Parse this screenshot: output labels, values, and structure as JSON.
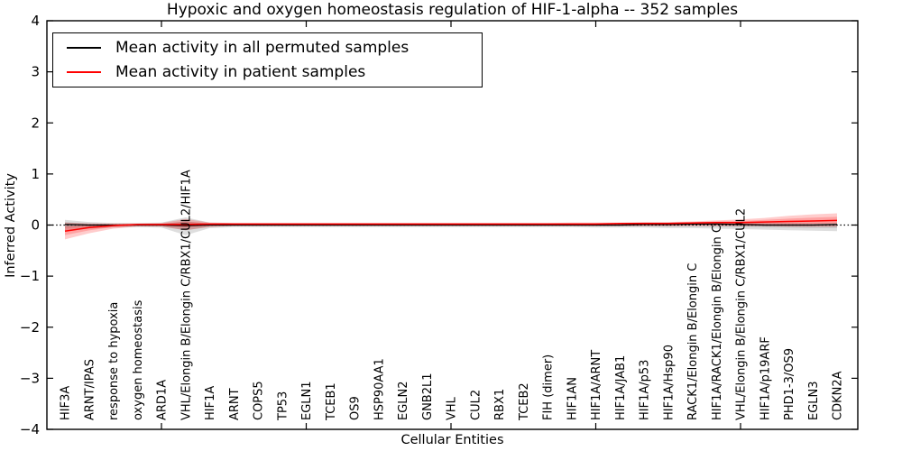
{
  "chart_data": {
    "type": "line",
    "title": "Hypoxic and oxygen homeostasis regulation of HIF-1-alpha -- 352 samples",
    "xlabel": "Cellular Entities",
    "ylabel": "Inferred Activity",
    "ylim": [
      -4,
      4
    ],
    "grid": false,
    "legend_position": "upper left",
    "yticks": {
      "values": [
        4,
        3,
        2,
        1,
        0,
        -1,
        -2,
        -3,
        -4
      ],
      "labels": [
        "4",
        "3",
        "2",
        "1",
        "0",
        "−1",
        "−2",
        "−3",
        "−4"
      ]
    },
    "xtick_positions": [
      4,
      10,
      16,
      22,
      28
    ],
    "categories": [
      "HIF3A",
      "ARNT/IPAS",
      "response to hypoxia",
      "oxygen homeostasis",
      "ARD1A",
      "VHL/Elongin B/Elongin C/RBX1/CUL2/HIF1A",
      "HIF1A",
      "ARNT",
      "COPS5",
      "TP53",
      "EGLN1",
      "TCEB1",
      "OS9",
      "HSP90AA1",
      "EGLN2",
      "GNB2L1",
      "VHL",
      "CUL2",
      "RBX1",
      "TCEB2",
      "FIH (dimer)",
      "HIF1AN",
      "HIF1A/ARNT",
      "HIF1A/JAB1",
      "HIF1A/p53",
      "HIF1A/Hsp90",
      "RACK1/Elongin B/Elongin C",
      "HIF1A/RACK1/Elongin B/Elongin C",
      "VHL/Elongin B/Elongin C/RBX1/CUL2",
      "HIF1A/p19ARF",
      "PHD1-3/OS9",
      "EGLN3",
      "CDKN2A"
    ],
    "series": [
      {
        "name": "Mean activity in all permuted samples",
        "color": "#000000",
        "band_color": "rgba(0,0,0,0.13)",
        "values": [
          0.01,
          0.0,
          0.0,
          0.0,
          0.0,
          -0.01,
          0.0,
          0.0,
          0.0,
          0.0,
          0.0,
          0.0,
          0.0,
          0.0,
          0.0,
          0.0,
          0.0,
          0.0,
          0.0,
          0.0,
          0.0,
          0.0,
          0.0,
          0.0,
          0.01,
          0.01,
          0.02,
          0.02,
          0.01,
          0.0,
          0.0,
          0.0,
          0.01
        ],
        "band_upper": [
          0.1,
          0.06,
          0.04,
          0.04,
          0.05,
          0.15,
          0.05,
          0.04,
          0.04,
          0.04,
          0.04,
          0.04,
          0.04,
          0.04,
          0.04,
          0.04,
          0.04,
          0.04,
          0.04,
          0.04,
          0.04,
          0.04,
          0.04,
          0.04,
          0.05,
          0.05,
          0.06,
          0.06,
          0.05,
          0.05,
          0.05,
          0.05,
          0.05
        ],
        "band_lower": [
          -0.12,
          -0.07,
          -0.05,
          -0.04,
          -0.05,
          -0.2,
          -0.06,
          -0.04,
          -0.04,
          -0.04,
          -0.04,
          -0.04,
          -0.04,
          -0.04,
          -0.04,
          -0.04,
          -0.04,
          -0.04,
          -0.04,
          -0.04,
          -0.04,
          -0.04,
          -0.05,
          -0.05,
          -0.05,
          -0.06,
          -0.06,
          -0.07,
          -0.08,
          -0.09,
          -0.1,
          -0.11,
          -0.12
        ]
      },
      {
        "name": "Mean activity in patient samples",
        "color": "#ff0000",
        "band_color": "rgba(255,0,0,0.20)",
        "values": [
          -0.12,
          -0.05,
          -0.01,
          0.01,
          0.01,
          0.01,
          0.02,
          0.02,
          0.02,
          0.02,
          0.02,
          0.02,
          0.02,
          0.02,
          0.02,
          0.02,
          0.02,
          0.02,
          0.02,
          0.02,
          0.02,
          0.02,
          0.02,
          0.03,
          0.03,
          0.03,
          0.04,
          0.05,
          0.05,
          0.06,
          0.07,
          0.08,
          0.09
        ],
        "band_upper": [
          0.05,
          0.03,
          0.03,
          0.03,
          0.04,
          0.12,
          0.05,
          0.04,
          0.04,
          0.04,
          0.04,
          0.04,
          0.04,
          0.04,
          0.04,
          0.04,
          0.04,
          0.04,
          0.04,
          0.04,
          0.04,
          0.05,
          0.05,
          0.05,
          0.06,
          0.06,
          0.07,
          0.09,
          0.11,
          0.14,
          0.18,
          0.21,
          0.23
        ],
        "band_lower": [
          -0.28,
          -0.16,
          -0.07,
          -0.03,
          -0.03,
          -0.1,
          -0.04,
          -0.02,
          -0.02,
          -0.02,
          -0.02,
          -0.02,
          -0.02,
          -0.02,
          -0.02,
          -0.02,
          -0.02,
          -0.02,
          -0.02,
          -0.02,
          -0.02,
          -0.02,
          -0.02,
          -0.02,
          -0.02,
          -0.02,
          -0.02,
          -0.02,
          -0.02,
          -0.02,
          -0.03,
          -0.03,
          -0.03
        ]
      }
    ],
    "zero_line": {
      "y": 0,
      "style": "dotted",
      "color": "#000000"
    }
  }
}
